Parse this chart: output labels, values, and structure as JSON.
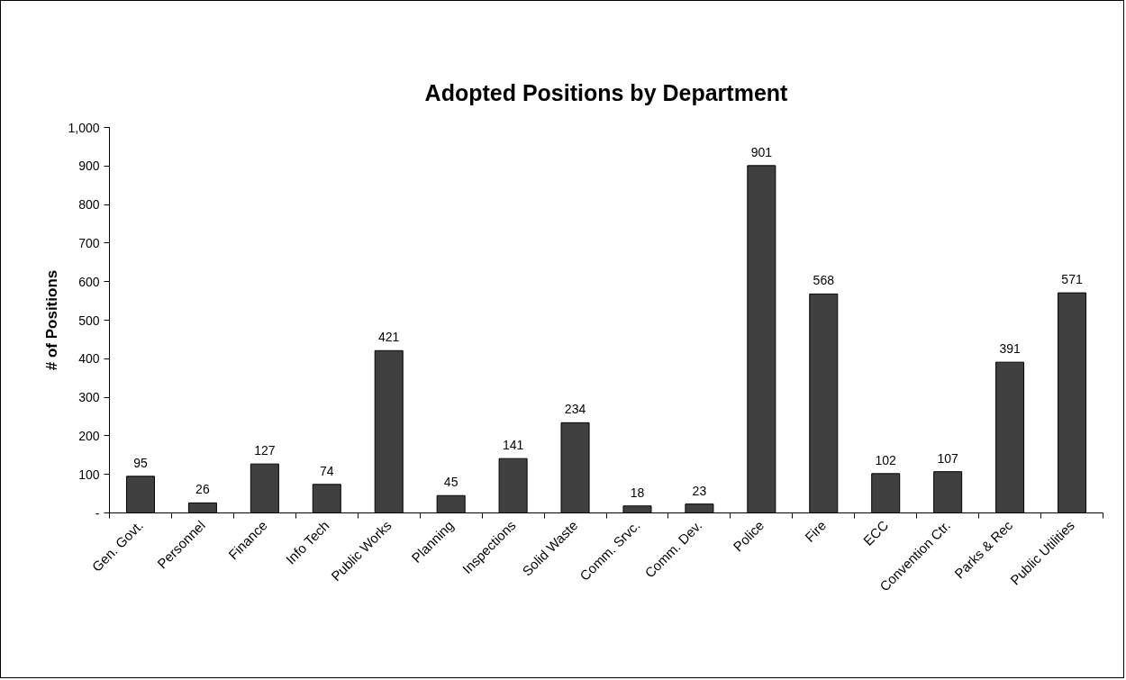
{
  "chart_data": {
    "type": "bar",
    "title": "Adopted Positions by Department",
    "ylabel": "# of Positions",
    "categories": [
      "Gen. Govt.",
      "Personnel",
      "Finance",
      "Info Tech",
      "Public Works",
      "Planning",
      "Inspections",
      "Solid Waste",
      "Comm. Srvc.",
      "Comm. Dev.",
      "Police",
      "Fire",
      "ECC",
      "Convention Ctr.",
      "Parks & Rec",
      "Public Utilities"
    ],
    "values": [
      95,
      26,
      127,
      74,
      421,
      45,
      141,
      234,
      18,
      23,
      901,
      568,
      102,
      107,
      391,
      571
    ],
    "color": "#404040",
    "ylim": [
      0,
      1000
    ],
    "yticks": [
      {
        "value": 0,
        "label": "-"
      },
      100,
      200,
      300,
      400,
      500,
      600,
      700,
      800,
      900,
      {
        "value": 1000,
        "label": "1,000"
      }
    ],
    "data_labels": true,
    "grid": false
  }
}
